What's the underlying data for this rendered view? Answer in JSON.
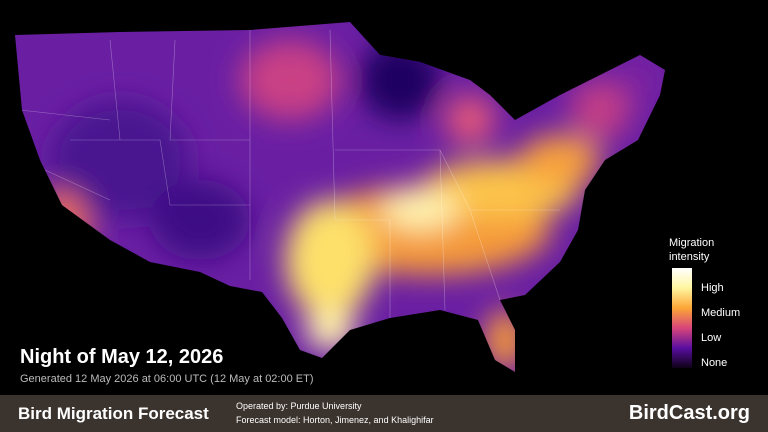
{
  "map": {
    "title": "Night of May 12, 2026",
    "generated": "Generated 12 May 2026 at 06:00 UTC (12 May at 02:00 ET)",
    "legend": {
      "title": "Migration intensity",
      "levels": [
        "High",
        "Medium",
        "Low",
        "None"
      ]
    },
    "footer": {
      "name": "Bird Migration Forecast",
      "operator": "Operated by: Purdue University",
      "model": "Forecast model: Horton, Jimenez, and Khalighifar",
      "site": "BirdCast.org"
    }
  }
}
